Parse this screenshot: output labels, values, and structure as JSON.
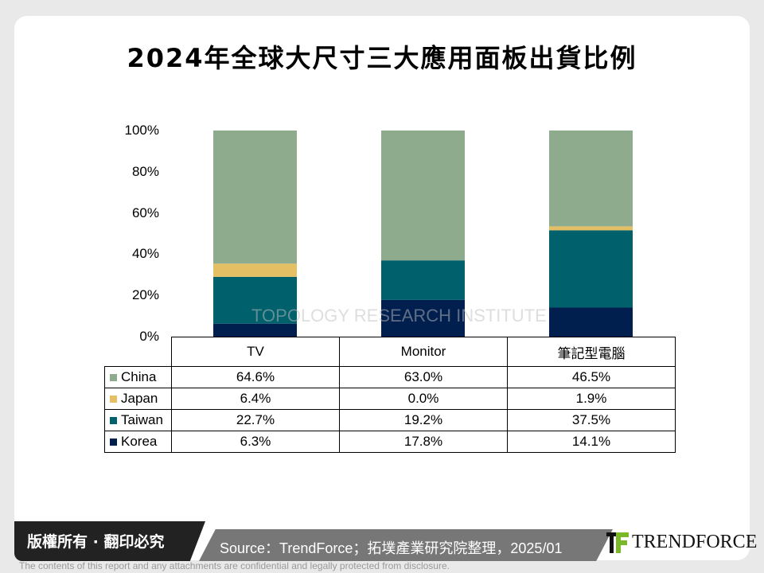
{
  "title": "2024年全球大尺寸三大應用面板出貨比例",
  "chart_data": {
    "type": "bar",
    "stacked": true,
    "title": "2024年全球大尺寸三大應用面板出貨比例",
    "categories": [
      "TV",
      "Monitor",
      "筆記型電腦"
    ],
    "yticks": [
      "0%",
      "20%",
      "40%",
      "60%",
      "80%",
      "100%"
    ],
    "ylim": [
      0,
      100
    ],
    "series": [
      {
        "name": "Korea",
        "color": "#001E4E",
        "values": [
          6.3,
          17.8,
          14.1
        ],
        "labels": [
          "6.3%",
          "17.8%",
          "14.1%"
        ]
      },
      {
        "name": "Taiwan",
        "color": "#00606C",
        "values": [
          22.7,
          19.2,
          37.5
        ],
        "labels": [
          "22.7%",
          "19.2%",
          "37.5%"
        ]
      },
      {
        "name": "Japan",
        "color": "#E5BF64",
        "values": [
          6.4,
          0.0,
          1.9
        ],
        "labels": [
          "6.4%",
          "0.0%",
          "1.9%"
        ]
      },
      {
        "name": "China",
        "color": "#8EAB8E",
        "values": [
          64.6,
          63.0,
          46.5
        ],
        "labels": [
          "64.6%",
          "63.0%",
          "46.5%"
        ]
      }
    ],
    "table_order": [
      "China",
      "Japan",
      "Taiwan",
      "Korea"
    ]
  },
  "watermark": "TOPOLOGY RESEARCH INSTITUTE",
  "footer": {
    "copyright": "版權所有 · 翻印必究",
    "source": "Source：TrendForce；拓墣產業研究院整理，2025/01",
    "logo": "TRENDFORCE",
    "disclaimer": "The contents of this report and any attachments are confidential and legally protected from disclosure."
  }
}
